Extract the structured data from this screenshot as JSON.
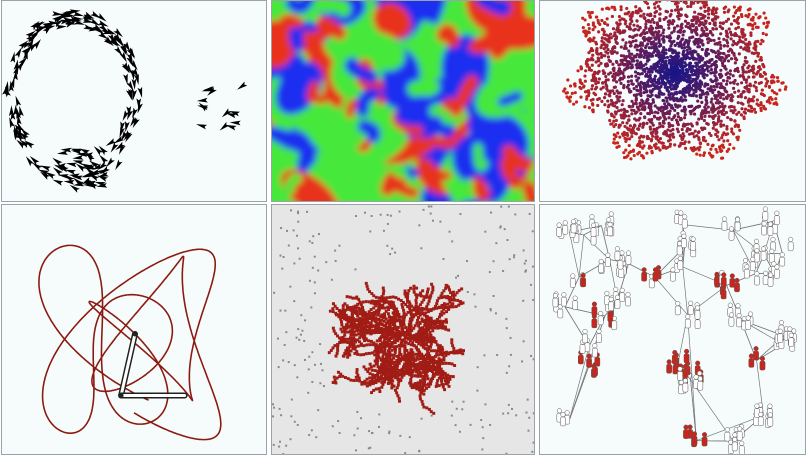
{
  "panels": [
    {
      "name": "flocking-birds",
      "colors": {
        "bird": "#000000",
        "bg": "#f6fcfc"
      }
    },
    {
      "name": "reaction-diffusion",
      "colors": {
        "red": "#e8301e",
        "green": "#45e83a",
        "blue": "#1a2ff0",
        "bg": "#27c23a"
      }
    },
    {
      "name": "radial-aggregate-gradient",
      "colors": {
        "inner": "#15158a",
        "outer": "#c8261c",
        "bg": "#f6fcfc"
      }
    },
    {
      "name": "double-pendulum-trace",
      "colors": {
        "trace": "#8b1a10",
        "arm": "#222222",
        "bg": "#f6fcfc"
      }
    },
    {
      "name": "diffusion-limited-aggregation",
      "colors": {
        "cluster": "#a01c14",
        "particle": "#888888",
        "bg": "#e6e6e6"
      }
    },
    {
      "name": "virus-on-network",
      "colors": {
        "infected": "#c8261c",
        "susceptible": "#ffffff",
        "edge": "#777777",
        "bg": "#f6fcfc"
      }
    }
  ]
}
